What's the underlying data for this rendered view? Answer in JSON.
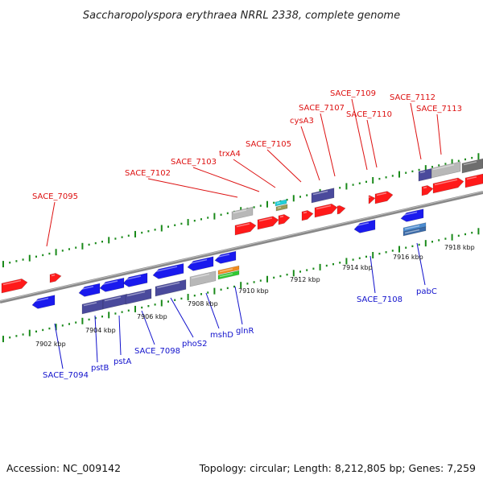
{
  "title": "Saccharopolyspora erythraea NRRL 2338, complete genome",
  "footer": {
    "accession": "Accession: NC_009142",
    "summary": "Topology: circular; Length: 8,212,805 bp; Genes: 7,259"
  },
  "colors": {
    "forward": "#ff1a1a",
    "reverse": "#1a1aee",
    "nav": "#4a4a9c",
    "grey": "#b8b8b8",
    "dark_grey": "#6e6e6e",
    "cyan": "#22d0d8",
    "olive": "#9a9a55",
    "orange": "#f08c1e",
    "green": "#32c832",
    "steel": "#4c8cd0",
    "tick": "#1a8a1a",
    "backbone": "#888888",
    "top_label": "#dd1111",
    "bottom_label": "#1111cc"
  },
  "kbp_labels": [
    "7902 kbp",
    "7904 kbp",
    "7906 kbp",
    "7908 kbp",
    "7910 kbp",
    "7912 kbp",
    "7914 kbp",
    "7916 kbp",
    "7918 kbp"
  ],
  "top_labels": [
    "SACE_7095",
    "SACE_7102",
    "SACE_7103",
    "trxA4",
    "SACE_7105",
    "cysA3",
    "SACE_7107",
    "SACE_7109",
    "SACE_7110",
    "SACE_7112",
    "SACE_7113"
  ],
  "bottom_labels": [
    "SACE_7094",
    "pstB",
    "pstA",
    "SACE_7098",
    "phoS2",
    "mshD",
    "glnR",
    "SACE_7108",
    "pabC"
  ]
}
